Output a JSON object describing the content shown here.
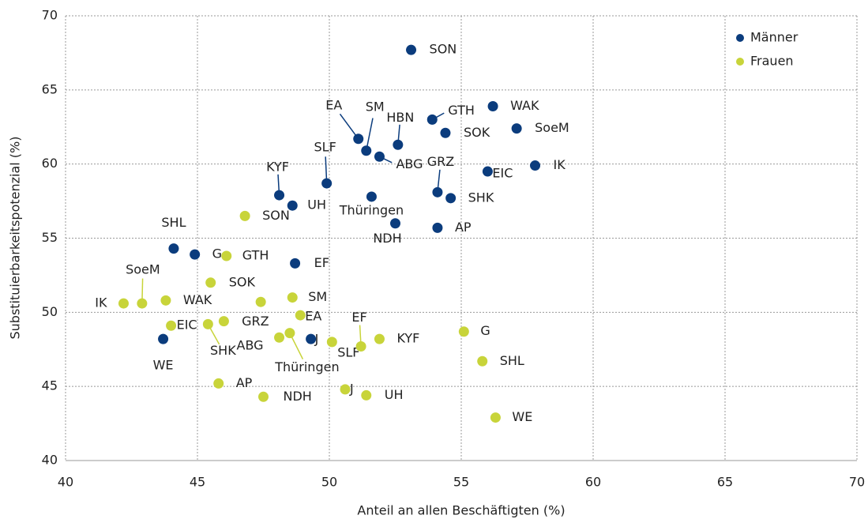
{
  "chart_data": {
    "type": "scatter",
    "xlabel": "Anteil an allen Beschäftigten (%)",
    "ylabel": "Substituierbarkeitspotenzial (%)",
    "xlim": [
      40,
      70
    ],
    "ylim": [
      40,
      70
    ],
    "xticks": [
      40,
      45,
      50,
      55,
      60,
      65,
      70
    ],
    "yticks": [
      40,
      45,
      50,
      55,
      60,
      65,
      70
    ],
    "grid": true,
    "legend": "upper right",
    "series": [
      {
        "name": "Männer",
        "color": "#0b3c7d",
        "labels": [
          "SON",
          "WAK",
          "GTH",
          "SoeM",
          "SOK",
          "EA",
          "HBN",
          "SM",
          "ABG",
          "IK",
          "EIC",
          "SLF",
          "GRZ",
          "KYF",
          "Thüringen",
          "SHK",
          "UH",
          "NDH",
          "AP",
          "SHL",
          "G",
          "EF",
          "WE",
          "J"
        ],
        "x": [
          53.1,
          56.2,
          53.9,
          57.1,
          54.4,
          51.1,
          52.6,
          51.4,
          51.9,
          57.8,
          56.0,
          49.9,
          54.1,
          48.1,
          51.6,
          54.6,
          48.6,
          52.5,
          54.1,
          44.1,
          44.9,
          48.7,
          43.7,
          49.3
        ],
        "values": [
          67.7,
          63.9,
          63.0,
          62.4,
          62.1,
          61.7,
          61.3,
          60.9,
          60.5,
          59.9,
          59.5,
          58.7,
          58.1,
          57.9,
          57.8,
          57.7,
          57.2,
          56.0,
          55.7,
          54.3,
          53.9,
          53.3,
          48.2,
          48.2
        ]
      },
      {
        "name": "Frauen",
        "color": "#c8d43a",
        "labels": [
          "SON",
          "GTH",
          "SOK",
          "SM",
          "WAK",
          "IK",
          "SoeM",
          null,
          "EA",
          "EIC",
          "SHK",
          "GRZ",
          "ABG",
          "Thüringen",
          "SLF",
          "EF",
          "KYF",
          "G",
          "SHL",
          "AP",
          "NDH",
          "J",
          "UH",
          "WE"
        ],
        "x": [
          46.8,
          46.1,
          45.5,
          48.6,
          43.8,
          42.2,
          42.9,
          47.4,
          48.9,
          44.0,
          45.4,
          46.0,
          48.1,
          48.5,
          50.1,
          51.2,
          51.9,
          55.1,
          55.8,
          45.8,
          47.5,
          50.6,
          51.4,
          56.3
        ],
        "values": [
          56.5,
          53.8,
          52.0,
          51.0,
          50.8,
          50.6,
          50.6,
          50.7,
          49.8,
          49.1,
          49.2,
          49.4,
          48.3,
          48.6,
          48.0,
          47.7,
          48.2,
          48.7,
          46.7,
          45.2,
          44.3,
          44.8,
          44.4,
          42.9
        ]
      }
    ]
  }
}
